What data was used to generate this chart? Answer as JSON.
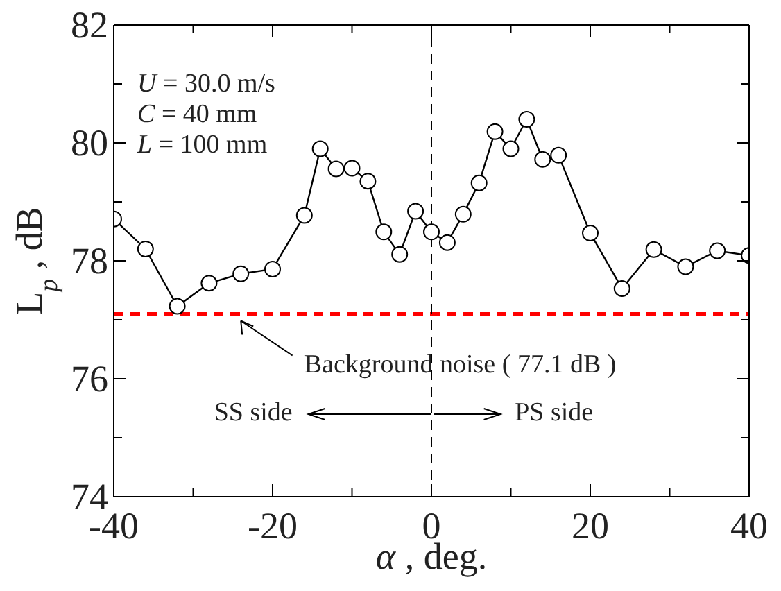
{
  "chart_data": {
    "type": "line",
    "xlabel": "α , deg.",
    "ylabel": "L$_{p}$ , dB",
    "x": [
      -40,
      -36,
      -32,
      -28,
      -24,
      -20,
      -16,
      -14,
      -12,
      -10,
      -8,
      -6,
      -4,
      -2,
      0,
      2,
      4,
      6,
      8,
      10,
      12,
      14,
      16,
      20,
      24,
      28,
      32,
      36,
      40
    ],
    "series": [
      {
        "color": "#000000",
        "values": [
          78.71,
          78.2,
          77.23,
          77.62,
          77.78,
          77.86,
          78.77,
          79.9,
          79.56,
          79.57,
          79.35,
          78.49,
          78.11,
          78.84,
          78.49,
          78.31,
          78.79,
          79.32,
          80.19,
          79.9,
          80.4,
          79.72,
          79.79,
          78.47,
          77.53,
          78.19,
          77.9,
          78.17,
          78.09
        ]
      }
    ],
    "xlim": [
      -40,
      40
    ],
    "ylim": [
      74,
      82
    ],
    "xticks": [
      -40,
      {
        "value": -30,
        "label": null
      },
      -20,
      {
        "value": -10,
        "label": null
      },
      0,
      {
        "value": 10,
        "label": null
      },
      20,
      {
        "value": 30,
        "label": null
      },
      40
    ],
    "yticks": [
      74,
      {
        "value": 75,
        "label": null
      },
      76,
      {
        "value": 77,
        "label": null
      },
      78,
      {
        "value": 79,
        "label": null
      },
      80,
      {
        "value": 81,
        "label": null
      },
      82
    ],
    "marker": "circle",
    "line_style": "solid",
    "ref_lines": [
      {
        "axis": "y",
        "value": 77.1,
        "label": "Background noise ( 77.1 dB )",
        "color": "#ff0000",
        "line_style": "dashed"
      },
      {
        "axis": "x",
        "value": 0,
        "label": null,
        "color": "#000000",
        "line_style": "dashed"
      }
    ],
    "annotations": [
      "U = 30.0 m/s",
      "C = 40 mm",
      "L = 100 mm",
      "SS side",
      "PS side"
    ]
  }
}
